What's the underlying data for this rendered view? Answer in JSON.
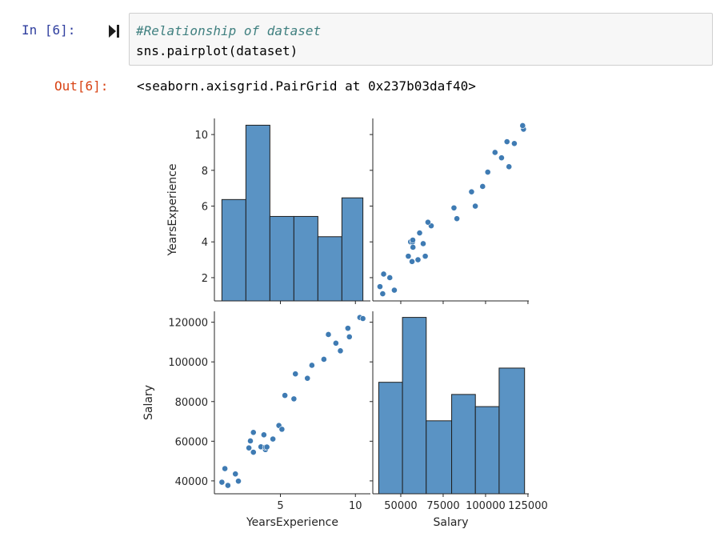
{
  "cell": {
    "in_prompt": "In [6]:",
    "code_comment": "#Relationship of dataset",
    "code_line": "sns.pairplot(dataset)",
    "out_prompt": "Out[6]:",
    "output_text": "<seaborn.axisgrid.PairGrid at 0x237b03daf40>"
  },
  "colors": {
    "accent": "#4c8ec0",
    "bar_fill": "#5a93c4",
    "point_fill": "#3f7bb3",
    "axis": "#262626"
  },
  "chart_data": {
    "type": "pairplot",
    "variables": [
      "YearsExperience",
      "Salary"
    ],
    "ye_ticks": [
      2,
      4,
      6,
      8,
      10
    ],
    "ye_xticks": [
      5,
      10
    ],
    "salary_ticks": [
      40000,
      60000,
      80000,
      100000,
      120000
    ],
    "salary_xticks": [
      50000,
      75000,
      100000,
      125000
    ],
    "hist_years": {
      "bins": [
        [
          1.1,
          2.7
        ],
        [
          2.7,
          4.3
        ],
        [
          4.3,
          5.9
        ],
        [
          5.9,
          7.5
        ],
        [
          7.5,
          9.1
        ],
        [
          9.1,
          10.5
        ]
      ],
      "counts": [
        6,
        10.4,
        5,
        5,
        3.8,
        6.1
      ]
    },
    "hist_salary": {
      "bins": [
        [
          37000,
          51000
        ],
        [
          51000,
          65000
        ],
        [
          65000,
          80000
        ],
        [
          80000,
          94000
        ],
        [
          94000,
          108000
        ],
        [
          108000,
          123000
        ]
      ],
      "counts": [
        5.5,
        8.7,
        3.6,
        4.9,
        4.3,
        6.2
      ]
    },
    "points": [
      {
        "x": 1.1,
        "y": 39343
      },
      {
        "x": 1.3,
        "y": 46205
      },
      {
        "x": 1.5,
        "y": 37731
      },
      {
        "x": 2.0,
        "y": 43525
      },
      {
        "x": 2.2,
        "y": 39891
      },
      {
        "x": 2.9,
        "y": 56642
      },
      {
        "x": 3.0,
        "y": 60150
      },
      {
        "x": 3.2,
        "y": 54445
      },
      {
        "x": 3.2,
        "y": 64445
      },
      {
        "x": 3.7,
        "y": 57189
      },
      {
        "x": 3.9,
        "y": 63218
      },
      {
        "x": 4.0,
        "y": 55794
      },
      {
        "x": 4.0,
        "y": 56957
      },
      {
        "x": 4.1,
        "y": 57081
      },
      {
        "x": 4.5,
        "y": 61111
      },
      {
        "x": 4.9,
        "y": 67938
      },
      {
        "x": 5.1,
        "y": 66029
      },
      {
        "x": 5.3,
        "y": 83088
      },
      {
        "x": 5.9,
        "y": 81363
      },
      {
        "x": 6.0,
        "y": 93940
      },
      {
        "x": 6.8,
        "y": 91738
      },
      {
        "x": 7.1,
        "y": 98273
      },
      {
        "x": 7.9,
        "y": 101302
      },
      {
        "x": 8.2,
        "y": 113812
      },
      {
        "x": 8.7,
        "y": 109431
      },
      {
        "x": 9.0,
        "y": 105582
      },
      {
        "x": 9.5,
        "y": 116969
      },
      {
        "x": 9.6,
        "y": 112635
      },
      {
        "x": 10.3,
        "y": 122391
      },
      {
        "x": 10.5,
        "y": 121872
      }
    ]
  }
}
